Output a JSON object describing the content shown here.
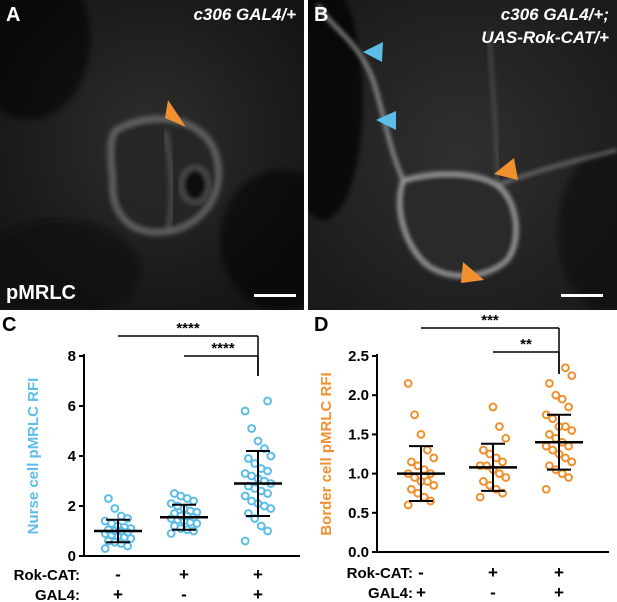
{
  "panels": {
    "A": {
      "letter": "A",
      "genotype": "c306 GAL4/+",
      "stain": "pMRLC"
    },
    "B": {
      "letter": "B",
      "genotype_line1": "c306 GAL4/+;",
      "genotype_line2": "UAS-Rok-CAT/+"
    },
    "C": {
      "letter": "C"
    },
    "D": {
      "letter": "D"
    }
  },
  "colors": {
    "nurse": "#5bbde8",
    "border": "#f0902e",
    "arrow_orange": "#f0902e",
    "arrow_blue": "#5bbde8"
  },
  "genotype_rows": {
    "rok_label": "Rok-CAT:",
    "gal4_label": "GAL4:",
    "rok": [
      "-",
      "+",
      "+"
    ],
    "gal4": [
      "+",
      "-",
      "+"
    ]
  },
  "chart_data": [
    {
      "type": "scatter",
      "ylabel": "Nurse cell pMRLC RFI",
      "ylim": [
        0,
        8
      ],
      "yticks": [
        "0",
        "2",
        "4",
        "6",
        "8"
      ],
      "groups": [
        {
          "mean": 1.0,
          "sd": 0.45,
          "values": [
            0.3,
            0.4,
            0.5,
            0.55,
            0.6,
            0.7,
            0.75,
            0.8,
            0.85,
            0.9,
            0.95,
            1.0,
            1.0,
            1.05,
            1.1,
            1.15,
            1.2,
            1.3,
            1.4,
            1.5,
            1.6,
            1.9,
            2.3
          ]
        },
        {
          "mean": 1.55,
          "sd": 0.5,
          "values": [
            0.9,
            1.0,
            1.05,
            1.1,
            1.2,
            1.3,
            1.35,
            1.4,
            1.45,
            1.5,
            1.55,
            1.6,
            1.6,
            1.7,
            1.75,
            1.8,
            1.9,
            2.0,
            2.1,
            2.2,
            2.3,
            2.4,
            2.5
          ]
        },
        {
          "mean": 2.9,
          "sd": 1.3,
          "values": [
            0.6,
            1.0,
            1.2,
            1.5,
            1.7,
            1.9,
            2.0,
            2.1,
            2.2,
            2.4,
            2.5,
            2.6,
            2.7,
            2.8,
            2.9,
            3.0,
            3.1,
            3.2,
            3.3,
            3.4,
            3.5,
            3.7,
            3.9,
            4.0,
            4.3,
            4.6,
            5.1,
            5.8,
            6.2
          ]
        }
      ],
      "significance": [
        {
          "from": 0,
          "to": 2,
          "label": "****"
        },
        {
          "from": 1,
          "to": 2,
          "label": "****"
        }
      ]
    },
    {
      "type": "scatter",
      "ylabel": "Border cell pMRLC RFI",
      "ylim": [
        0,
        2.5
      ],
      "yticks": [
        "0.0",
        "0.5",
        "1.0",
        "1.5",
        "2.0",
        "2.5"
      ],
      "groups": [
        {
          "mean": 1.0,
          "sd": 0.35,
          "values": [
            0.6,
            0.65,
            0.7,
            0.75,
            0.8,
            0.85,
            0.9,
            0.9,
            0.95,
            1.0,
            1.0,
            1.05,
            1.1,
            1.15,
            1.2,
            1.3,
            1.5,
            1.75,
            2.15
          ]
        },
        {
          "mean": 1.08,
          "sd": 0.3,
          "values": [
            0.7,
            0.75,
            0.8,
            0.85,
            0.9,
            0.95,
            1.0,
            1.05,
            1.1,
            1.1,
            1.15,
            1.2,
            1.25,
            1.3,
            1.45,
            1.6,
            1.85
          ]
        },
        {
          "mean": 1.4,
          "sd": 0.35,
          "values": [
            0.8,
            0.95,
            1.0,
            1.05,
            1.1,
            1.15,
            1.2,
            1.25,
            1.3,
            1.35,
            1.35,
            1.4,
            1.45,
            1.5,
            1.55,
            1.6,
            1.6,
            1.7,
            1.75,
            1.85,
            1.95,
            2.0,
            2.15,
            2.25,
            2.35
          ]
        }
      ],
      "significance": [
        {
          "from": 0,
          "to": 2,
          "label": "***"
        },
        {
          "from": 1,
          "to": 2,
          "label": "**"
        }
      ]
    }
  ]
}
